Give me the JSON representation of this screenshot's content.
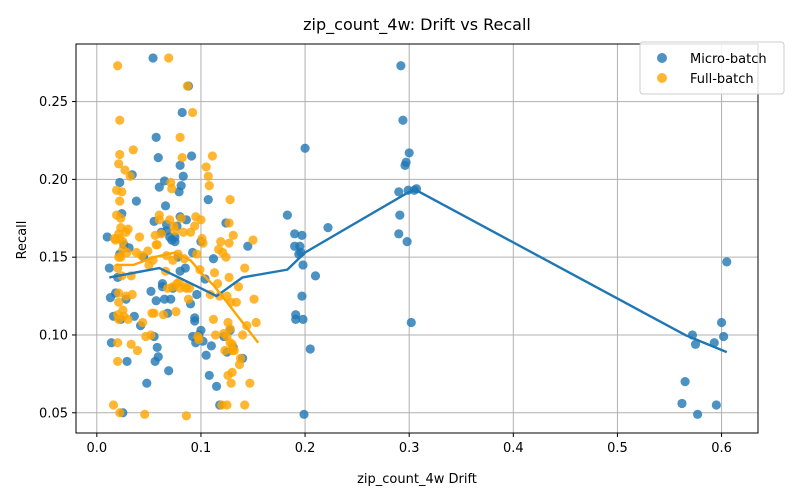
{
  "chart_data": {
    "type": "scatter",
    "title": "zip_count_4w: Drift vs Recall",
    "xlabel": "zip_count_4w Drift",
    "ylabel": "Recall",
    "xlim": [
      -0.02,
      0.635
    ],
    "ylim": [
      0.037,
      0.287
    ],
    "xticks": [
      0.0,
      0.1,
      0.2,
      0.3,
      0.4,
      0.5,
      0.6
    ],
    "xtick_labels": [
      "0.0",
      "0.1",
      "0.2",
      "0.3",
      "0.4",
      "0.5",
      "0.6"
    ],
    "yticks": [
      0.05,
      0.1,
      0.15,
      0.2,
      0.25
    ],
    "ytick_labels": [
      "0.05",
      "0.10",
      "0.15",
      "0.20",
      "0.25"
    ],
    "grid": true,
    "legend_position": "top-right",
    "series": [
      {
        "name": "Micro-batch",
        "color": "#1f77b4",
        "points": [
          [
            0.01,
            0.163
          ],
          [
            0.012,
            0.143
          ],
          [
            0.013,
            0.124
          ],
          [
            0.014,
            0.095
          ],
          [
            0.016,
            0.112
          ],
          [
            0.018,
            0.127
          ],
          [
            0.02,
            0.137
          ],
          [
            0.022,
            0.152
          ],
          [
            0.022,
            0.198
          ],
          [
            0.023,
            0.11
          ],
          [
            0.024,
            0.178
          ],
          [
            0.025,
            0.05
          ],
          [
            0.026,
            0.158
          ],
          [
            0.028,
            0.123
          ],
          [
            0.029,
            0.083
          ],
          [
            0.031,
            0.156
          ],
          [
            0.034,
            0.203
          ],
          [
            0.036,
            0.112
          ],
          [
            0.038,
            0.186
          ],
          [
            0.042,
            0.106
          ],
          [
            0.045,
            0.15
          ],
          [
            0.048,
            0.069
          ],
          [
            0.052,
            0.128
          ],
          [
            0.054,
            0.278
          ],
          [
            0.055,
            0.173
          ],
          [
            0.055,
            0.099
          ],
          [
            0.056,
            0.083
          ],
          [
            0.057,
            0.227
          ],
          [
            0.057,
            0.122
          ],
          [
            0.058,
            0.092
          ],
          [
            0.059,
            0.086
          ],
          [
            0.059,
            0.214
          ],
          [
            0.06,
            0.195
          ],
          [
            0.062,
            0.166
          ],
          [
            0.063,
            0.133
          ],
          [
            0.063,
            0.131
          ],
          [
            0.065,
            0.199
          ],
          [
            0.065,
            0.123
          ],
          [
            0.066,
            0.183
          ],
          [
            0.067,
            0.167
          ],
          [
            0.067,
            0.171
          ],
          [
            0.068,
            0.114
          ],
          [
            0.069,
            0.077
          ],
          [
            0.07,
            0.163
          ],
          [
            0.071,
            0.123
          ],
          [
            0.072,
            0.161
          ],
          [
            0.073,
            0.13
          ],
          [
            0.075,
            0.16
          ],
          [
            0.075,
            0.163
          ],
          [
            0.077,
            0.17
          ],
          [
            0.078,
            0.15
          ],
          [
            0.079,
            0.192
          ],
          [
            0.08,
            0.209
          ],
          [
            0.08,
            0.176
          ],
          [
            0.08,
            0.141
          ],
          [
            0.081,
            0.196
          ],
          [
            0.082,
            0.243
          ],
          [
            0.083,
            0.202
          ],
          [
            0.085,
            0.143
          ],
          [
            0.086,
            0.174
          ],
          [
            0.088,
            0.26
          ],
          [
            0.09,
            0.12
          ],
          [
            0.091,
            0.215
          ],
          [
            0.092,
            0.153
          ],
          [
            0.092,
            0.099
          ],
          [
            0.094,
            0.111
          ],
          [
            0.094,
            0.109
          ],
          [
            0.095,
            0.095
          ],
          [
            0.096,
            0.126
          ],
          [
            0.098,
            0.1
          ],
          [
            0.1,
            0.103
          ],
          [
            0.1,
            0.16
          ],
          [
            0.102,
            0.096
          ],
          [
            0.104,
            0.136
          ],
          [
            0.105,
            0.087
          ],
          [
            0.107,
            0.187
          ],
          [
            0.108,
            0.074
          ],
          [
            0.11,
            0.093
          ],
          [
            0.112,
            0.149
          ],
          [
            0.115,
            0.067
          ],
          [
            0.118,
            0.055
          ],
          [
            0.122,
            0.099
          ],
          [
            0.124,
            0.172
          ],
          [
            0.125,
            0.089
          ],
          [
            0.128,
            0.103
          ],
          [
            0.131,
            0.092
          ],
          [
            0.14,
            0.085
          ],
          [
            0.145,
            0.157
          ],
          [
            0.183,
            0.177
          ],
          [
            0.19,
            0.165
          ],
          [
            0.19,
            0.157
          ],
          [
            0.191,
            0.113
          ],
          [
            0.191,
            0.11
          ],
          [
            0.194,
            0.152
          ],
          [
            0.195,
            0.157
          ],
          [
            0.196,
            0.153
          ],
          [
            0.197,
            0.164
          ],
          [
            0.197,
            0.125
          ],
          [
            0.198,
            0.145
          ],
          [
            0.198,
            0.11
          ],
          [
            0.199,
            0.049
          ],
          [
            0.2,
            0.22
          ],
          [
            0.205,
            0.091
          ],
          [
            0.21,
            0.138
          ],
          [
            0.222,
            0.169
          ],
          [
            0.29,
            0.192
          ],
          [
            0.29,
            0.165
          ],
          [
            0.291,
            0.177
          ],
          [
            0.292,
            0.273
          ],
          [
            0.294,
            0.238
          ],
          [
            0.296,
            0.209
          ],
          [
            0.297,
            0.211
          ],
          [
            0.298,
            0.16
          ],
          [
            0.299,
            0.193
          ],
          [
            0.3,
            0.217
          ],
          [
            0.302,
            0.108
          ],
          [
            0.305,
            0.193
          ],
          [
            0.307,
            0.194
          ],
          [
            0.562,
            0.056
          ],
          [
            0.565,
            0.07
          ],
          [
            0.572,
            0.1
          ],
          [
            0.575,
            0.094
          ],
          [
            0.577,
            0.049
          ],
          [
            0.593,
            0.095
          ],
          [
            0.595,
            0.055
          ],
          [
            0.6,
            0.108
          ],
          [
            0.602,
            0.099
          ],
          [
            0.605,
            0.147
          ]
        ],
        "trend": [
          [
            0.012,
            0.137
          ],
          [
            0.06,
            0.143
          ],
          [
            0.1,
            0.13
          ],
          [
            0.115,
            0.125
          ],
          [
            0.14,
            0.137
          ],
          [
            0.183,
            0.142
          ],
          [
            0.2,
            0.153
          ],
          [
            0.3,
            0.192
          ],
          [
            0.307,
            0.193
          ],
          [
            0.565,
            0.1
          ],
          [
            0.605,
            0.089
          ]
        ]
      },
      {
        "name": "Full-batch",
        "color": "#ffa500",
        "points": [
          [
            0.016,
            0.055
          ],
          [
            0.017,
            0.162
          ],
          [
            0.018,
            0.161
          ],
          [
            0.019,
            0.193
          ],
          [
            0.019,
            0.177
          ],
          [
            0.02,
            0.273
          ],
          [
            0.02,
            0.143
          ],
          [
            0.02,
            0.113
          ],
          [
            0.02,
            0.095
          ],
          [
            0.02,
            0.083
          ],
          [
            0.021,
            0.21
          ],
          [
            0.021,
            0.165
          ],
          [
            0.021,
            0.15
          ],
          [
            0.021,
            0.127
          ],
          [
            0.021,
            0.121
          ],
          [
            0.021,
            0.11
          ],
          [
            0.022,
            0.238
          ],
          [
            0.022,
            0.216
          ],
          [
            0.022,
            0.186
          ],
          [
            0.022,
            0.162
          ],
          [
            0.022,
            0.05
          ],
          [
            0.023,
            0.175
          ],
          [
            0.023,
            0.169
          ],
          [
            0.023,
            0.15
          ],
          [
            0.024,
            0.192
          ],
          [
            0.024,
            0.138
          ],
          [
            0.025,
            0.16
          ],
          [
            0.025,
            0.155
          ],
          [
            0.025,
            0.116
          ],
          [
            0.026,
            0.112
          ],
          [
            0.027,
            0.206
          ],
          [
            0.028,
            0.166
          ],
          [
            0.028,
            0.125
          ],
          [
            0.029,
            0.153
          ],
          [
            0.03,
            0.168
          ],
          [
            0.03,
            0.11
          ],
          [
            0.032,
            0.202
          ],
          [
            0.033,
            0.138
          ],
          [
            0.033,
            0.094
          ],
          [
            0.034,
            0.126
          ],
          [
            0.035,
            0.219
          ],
          [
            0.038,
            0.153
          ],
          [
            0.039,
            0.09
          ],
          [
            0.041,
            0.163
          ],
          [
            0.043,
            0.151
          ],
          [
            0.044,
            0.108
          ],
          [
            0.046,
            0.049
          ],
          [
            0.047,
            0.099
          ],
          [
            0.049,
            0.154
          ],
          [
            0.05,
            0.145
          ],
          [
            0.052,
            0.1
          ],
          [
            0.053,
            0.114
          ],
          [
            0.054,
            0.148
          ],
          [
            0.055,
            0.114
          ],
          [
            0.056,
            0.164
          ],
          [
            0.057,
            0.158
          ],
          [
            0.058,
            0.158
          ],
          [
            0.06,
            0.174
          ],
          [
            0.06,
            0.177
          ],
          [
            0.062,
            0.165
          ],
          [
            0.064,
            0.113
          ],
          [
            0.066,
            0.141
          ],
          [
            0.067,
            0.151
          ],
          [
            0.068,
            0.13
          ],
          [
            0.069,
            0.278
          ],
          [
            0.07,
            0.174
          ],
          [
            0.071,
            0.198
          ],
          [
            0.072,
            0.194
          ],
          [
            0.073,
            0.148
          ],
          [
            0.073,
            0.131
          ],
          [
            0.074,
            0.17
          ],
          [
            0.075,
            0.167
          ],
          [
            0.076,
            0.115
          ],
          [
            0.077,
            0.133
          ],
          [
            0.078,
            0.152
          ],
          [
            0.079,
            0.134
          ],
          [
            0.08,
            0.227
          ],
          [
            0.08,
            0.13
          ],
          [
            0.081,
            0.175
          ],
          [
            0.082,
            0.214
          ],
          [
            0.083,
            0.166
          ],
          [
            0.084,
            0.149
          ],
          [
            0.085,
            0.131
          ],
          [
            0.086,
            0.13
          ],
          [
            0.086,
            0.048
          ],
          [
            0.087,
            0.26
          ],
          [
            0.088,
            0.123
          ],
          [
            0.089,
            0.13
          ],
          [
            0.09,
            0.166
          ],
          [
            0.092,
            0.243
          ],
          [
            0.094,
            0.17
          ],
          [
            0.095,
            0.176
          ],
          [
            0.096,
            0.152
          ],
          [
            0.097,
            0.099
          ],
          [
            0.098,
            0.097
          ],
          [
            0.099,
            0.142
          ],
          [
            0.1,
            0.174
          ],
          [
            0.101,
            0.162
          ],
          [
            0.102,
            0.159
          ],
          [
            0.105,
            0.208
          ],
          [
            0.107,
            0.202
          ],
          [
            0.108,
            0.196
          ],
          [
            0.109,
            0.126
          ],
          [
            0.111,
            0.215
          ],
          [
            0.112,
            0.11
          ],
          [
            0.113,
            0.14
          ],
          [
            0.114,
            0.1
          ],
          [
            0.116,
            0.133
          ],
          [
            0.117,
            0.155
          ],
          [
            0.118,
            0.125
          ],
          [
            0.119,
            0.16
          ],
          [
            0.12,
            0.055
          ],
          [
            0.121,
            0.153
          ],
          [
            0.122,
            0.101
          ],
          [
            0.123,
            0.09
          ],
          [
            0.124,
            0.15
          ],
          [
            0.125,
            0.099
          ],
          [
            0.125,
            0.055
          ],
          [
            0.125,
            0.125
          ],
          [
            0.126,
            0.108
          ],
          [
            0.126,
            0.074
          ],
          [
            0.127,
            0.172
          ],
          [
            0.127,
            0.159
          ],
          [
            0.127,
            0.137
          ],
          [
            0.128,
            0.104
          ],
          [
            0.128,
            0.187
          ],
          [
            0.128,
            0.095
          ],
          [
            0.129,
            0.121
          ],
          [
            0.129,
            0.069
          ],
          [
            0.13,
            0.076
          ],
          [
            0.13,
            0.094
          ],
          [
            0.13,
            0.09
          ],
          [
            0.131,
            0.164
          ],
          [
            0.132,
            0.09
          ],
          [
            0.134,
            0.121
          ],
          [
            0.136,
            0.131
          ],
          [
            0.137,
            0.081
          ],
          [
            0.138,
            0.085
          ],
          [
            0.14,
            0.1
          ],
          [
            0.142,
            0.055
          ],
          [
            0.142,
            0.143
          ],
          [
            0.144,
            0.106
          ],
          [
            0.147,
            0.069
          ],
          [
            0.15,
            0.161
          ],
          [
            0.151,
            0.123
          ],
          [
            0.153,
            0.108
          ]
        ],
        "trend": [
          [
            0.018,
            0.145
          ],
          [
            0.035,
            0.145
          ],
          [
            0.055,
            0.15
          ],
          [
            0.075,
            0.153
          ],
          [
            0.09,
            0.148
          ],
          [
            0.1,
            0.14
          ],
          [
            0.112,
            0.132
          ],
          [
            0.125,
            0.121
          ],
          [
            0.14,
            0.108
          ],
          [
            0.155,
            0.095
          ]
        ]
      }
    ]
  }
}
